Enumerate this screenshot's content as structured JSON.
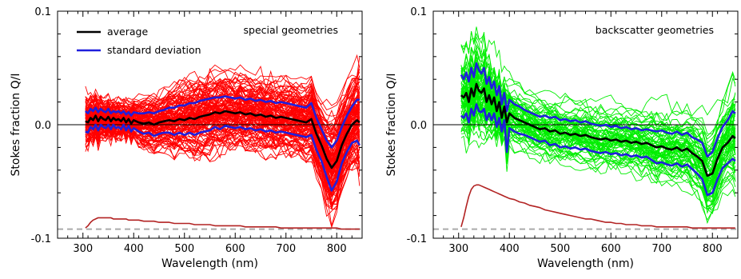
{
  "colors": {
    "average": "#000000",
    "std": "#1f1fdc",
    "ensemble_left": "#ff0000",
    "ensemble_right": "#00ee00",
    "spectrum": "#b22222",
    "dashed": "#aaaaaa"
  },
  "chart_data": [
    {
      "type": "line",
      "panel": "left",
      "annotation": "special geometries",
      "xlabel": "Wavelength (nm)",
      "ylabel": "Stokes fraction Q/I",
      "xlim": [
        250,
        850
      ],
      "ylim": [
        -0.1,
        0.1
      ],
      "x_ticks": [
        300,
        400,
        500,
        600,
        700,
        800
      ],
      "y_ticks": [
        {
          "v": -0.1,
          "label": "-0.1"
        },
        {
          "v": 0.0,
          "label": "0.0"
        },
        {
          "v": 0.1,
          "label": "0.1"
        }
      ],
      "legend": [
        {
          "name": "average",
          "color": "#000000"
        },
        {
          "name": "standard deviation",
          "color": "#1f1fdc"
        }
      ],
      "legend_position": "top-left",
      "zero_line": 0.0,
      "dashed_line": -0.092,
      "ensemble_count": 120,
      "ensemble_color": "#ff0000",
      "x": [
        305,
        310,
        315,
        320,
        325,
        330,
        335,
        340,
        345,
        350,
        355,
        360,
        365,
        370,
        375,
        380,
        385,
        390,
        395,
        400,
        410,
        420,
        430,
        440,
        450,
        460,
        470,
        480,
        490,
        500,
        510,
        520,
        530,
        540,
        550,
        560,
        570,
        580,
        590,
        600,
        610,
        620,
        630,
        640,
        650,
        660,
        670,
        680,
        690,
        700,
        710,
        720,
        730,
        740,
        750,
        760,
        770,
        780,
        790,
        800,
        810,
        820,
        830,
        840,
        845
      ],
      "series": [
        {
          "role": "average",
          "values": [
            0.003,
            0.002,
            0.006,
            0.004,
            0.008,
            0.003,
            0.007,
            0.005,
            0.004,
            0.007,
            0.003,
            0.006,
            0.004,
            0.005,
            0.003,
            0.006,
            0.002,
            0.005,
            0.001,
            0.004,
            0.002,
            0.001,
            0.002,
            0.0,
            0.002,
            0.003,
            0.004,
            0.003,
            0.005,
            0.004,
            0.006,
            0.005,
            0.007,
            0.008,
            0.009,
            0.011,
            0.01,
            0.012,
            0.011,
            0.01,
            0.011,
            0.009,
            0.01,
            0.008,
            0.009,
            0.007,
            0.008,
            0.006,
            0.007,
            0.006,
            0.005,
            0.004,
            0.003,
            0.002,
            0.005,
            -0.008,
            -0.018,
            -0.03,
            -0.038,
            -0.032,
            -0.018,
            -0.008,
            0.0,
            0.004,
            0.002
          ]
        },
        {
          "role": "std_upper",
          "values": [
            0.012,
            0.01,
            0.014,
            0.012,
            0.015,
            0.011,
            0.014,
            0.012,
            0.011,
            0.014,
            0.01,
            0.012,
            0.011,
            0.012,
            0.01,
            0.012,
            0.009,
            0.011,
            0.008,
            0.011,
            0.01,
            0.01,
            0.011,
            0.01,
            0.012,
            0.013,
            0.015,
            0.015,
            0.017,
            0.017,
            0.019,
            0.019,
            0.021,
            0.022,
            0.023,
            0.024,
            0.024,
            0.025,
            0.024,
            0.023,
            0.024,
            0.022,
            0.023,
            0.021,
            0.022,
            0.02,
            0.021,
            0.019,
            0.02,
            0.019,
            0.018,
            0.017,
            0.016,
            0.015,
            0.019,
            0.006,
            -0.004,
            -0.014,
            -0.02,
            -0.014,
            -0.002,
            0.008,
            0.016,
            0.022,
            0.022
          ]
        },
        {
          "role": "std_lower",
          "values": [
            -0.006,
            -0.007,
            -0.002,
            -0.004,
            0.0,
            -0.005,
            0.0,
            -0.002,
            -0.003,
            0.0,
            -0.004,
            0.0,
            -0.003,
            -0.002,
            -0.004,
            0.0,
            -0.005,
            -0.001,
            -0.006,
            -0.003,
            -0.006,
            -0.008,
            -0.007,
            -0.01,
            -0.008,
            -0.007,
            -0.007,
            -0.009,
            -0.007,
            -0.009,
            -0.007,
            -0.009,
            -0.007,
            -0.006,
            -0.005,
            -0.002,
            -0.004,
            -0.001,
            -0.002,
            -0.003,
            -0.002,
            -0.004,
            -0.003,
            -0.005,
            -0.004,
            -0.006,
            -0.005,
            -0.007,
            -0.006,
            -0.007,
            -0.008,
            -0.009,
            -0.01,
            -0.011,
            -0.009,
            -0.022,
            -0.032,
            -0.046,
            -0.058,
            -0.05,
            -0.034,
            -0.024,
            -0.016,
            -0.014,
            -0.018
          ]
        },
        {
          "role": "spectrum",
          "values": [
            -0.091,
            -0.089,
            -0.086,
            -0.084,
            -0.083,
            -0.082,
            -0.082,
            -0.082,
            -0.082,
            -0.082,
            -0.082,
            -0.083,
            -0.083,
            -0.083,
            -0.083,
            -0.083,
            -0.083,
            -0.084,
            -0.084,
            -0.084,
            -0.084,
            -0.085,
            -0.085,
            -0.085,
            -0.086,
            -0.086,
            -0.086,
            -0.087,
            -0.087,
            -0.087,
            -0.087,
            -0.088,
            -0.088,
            -0.088,
            -0.088,
            -0.089,
            -0.089,
            -0.089,
            -0.089,
            -0.089,
            -0.089,
            -0.09,
            -0.09,
            -0.09,
            -0.09,
            -0.09,
            -0.09,
            -0.09,
            -0.091,
            -0.091,
            -0.091,
            -0.091,
            -0.091,
            -0.091,
            -0.091,
            -0.091,
            -0.091,
            -0.091,
            -0.091,
            -0.091,
            -0.092,
            -0.092,
            -0.092,
            -0.092,
            -0.092
          ]
        }
      ]
    },
    {
      "type": "line",
      "panel": "right",
      "annotation": "backscatter geometries",
      "xlabel": "Wavelength (nm)",
      "ylabel": "Stokes fraction Q/I",
      "xlim": [
        250,
        850
      ],
      "ylim": [
        -0.1,
        0.1
      ],
      "x_ticks": [
        300,
        400,
        500,
        600,
        700,
        800
      ],
      "y_ticks": [
        {
          "v": -0.1,
          "label": "-0.1"
        },
        {
          "v": 0.0,
          "label": "0.0"
        },
        {
          "v": 0.1,
          "label": "0.1"
        }
      ],
      "zero_line": 0.0,
      "dashed_line": -0.092,
      "ensemble_count": 70,
      "ensemble_color": "#00ee00",
      "x": [
        305,
        310,
        315,
        320,
        325,
        330,
        335,
        340,
        345,
        350,
        355,
        360,
        365,
        370,
        375,
        380,
        385,
        390,
        395,
        400,
        410,
        420,
        430,
        440,
        450,
        460,
        470,
        480,
        490,
        500,
        510,
        520,
        530,
        540,
        550,
        560,
        570,
        580,
        590,
        600,
        610,
        620,
        630,
        640,
        650,
        660,
        670,
        680,
        690,
        700,
        710,
        720,
        730,
        740,
        750,
        760,
        770,
        780,
        790,
        800,
        810,
        820,
        830,
        840,
        845
      ],
      "series": [
        {
          "role": "average",
          "values": [
            0.026,
            0.024,
            0.028,
            0.02,
            0.032,
            0.025,
            0.036,
            0.03,
            0.028,
            0.032,
            0.02,
            0.026,
            0.018,
            0.024,
            0.012,
            0.02,
            0.006,
            0.016,
            0.002,
            0.01,
            0.006,
            0.004,
            0.002,
            0.0,
            -0.002,
            -0.004,
            -0.003,
            -0.006,
            -0.005,
            -0.008,
            -0.007,
            -0.009,
            -0.008,
            -0.01,
            -0.009,
            -0.011,
            -0.012,
            -0.013,
            -0.012,
            -0.014,
            -0.013,
            -0.015,
            -0.014,
            -0.016,
            -0.015,
            -0.017,
            -0.016,
            -0.018,
            -0.02,
            -0.019,
            -0.021,
            -0.022,
            -0.02,
            -0.023,
            -0.021,
            -0.025,
            -0.028,
            -0.032,
            -0.045,
            -0.043,
            -0.03,
            -0.02,
            -0.016,
            -0.01,
            -0.012
          ]
        },
        {
          "role": "std_upper",
          "values": [
            0.044,
            0.04,
            0.046,
            0.038,
            0.05,
            0.042,
            0.054,
            0.048,
            0.045,
            0.05,
            0.036,
            0.042,
            0.032,
            0.038,
            0.026,
            0.034,
            0.018,
            0.028,
            0.012,
            0.022,
            0.018,
            0.016,
            0.013,
            0.011,
            0.009,
            0.007,
            0.008,
            0.006,
            0.007,
            0.004,
            0.005,
            0.003,
            0.004,
            0.002,
            0.003,
            0.001,
            0.0,
            -0.001,
            0.0,
            -0.002,
            -0.001,
            -0.003,
            -0.002,
            -0.004,
            -0.003,
            -0.005,
            -0.004,
            -0.005,
            -0.006,
            -0.005,
            -0.007,
            -0.008,
            -0.006,
            -0.009,
            -0.007,
            -0.011,
            -0.013,
            -0.016,
            -0.028,
            -0.024,
            -0.012,
            -0.002,
            0.004,
            0.012,
            0.01
          ]
        },
        {
          "role": "std_lower",
          "values": [
            0.008,
            0.006,
            0.01,
            0.002,
            0.014,
            0.008,
            0.018,
            0.012,
            0.011,
            0.014,
            0.004,
            0.01,
            0.004,
            0.01,
            -0.002,
            0.006,
            -0.006,
            0.004,
            -0.024,
            -0.003,
            -0.006,
            -0.008,
            -0.009,
            -0.011,
            -0.013,
            -0.015,
            -0.014,
            -0.018,
            -0.017,
            -0.02,
            -0.019,
            -0.021,
            -0.02,
            -0.022,
            -0.021,
            -0.023,
            -0.024,
            -0.025,
            -0.024,
            -0.026,
            -0.025,
            -0.027,
            -0.026,
            -0.028,
            -0.027,
            -0.029,
            -0.028,
            -0.031,
            -0.034,
            -0.033,
            -0.035,
            -0.036,
            -0.034,
            -0.037,
            -0.035,
            -0.039,
            -0.043,
            -0.048,
            -0.062,
            -0.06,
            -0.048,
            -0.038,
            -0.034,
            -0.03,
            -0.032
          ]
        },
        {
          "role": "spectrum",
          "values": [
            -0.09,
            -0.082,
            -0.072,
            -0.063,
            -0.057,
            -0.054,
            -0.053,
            -0.053,
            -0.054,
            -0.055,
            -0.056,
            -0.057,
            -0.058,
            -0.059,
            -0.06,
            -0.061,
            -0.062,
            -0.063,
            -0.064,
            -0.065,
            -0.066,
            -0.068,
            -0.069,
            -0.071,
            -0.072,
            -0.073,
            -0.075,
            -0.076,
            -0.077,
            -0.078,
            -0.079,
            -0.08,
            -0.081,
            -0.082,
            -0.083,
            -0.083,
            -0.084,
            -0.085,
            -0.086,
            -0.086,
            -0.087,
            -0.087,
            -0.088,
            -0.088,
            -0.088,
            -0.089,
            -0.089,
            -0.089,
            -0.09,
            -0.09,
            -0.09,
            -0.09,
            -0.09,
            -0.09,
            -0.09,
            -0.091,
            -0.091,
            -0.091,
            -0.091,
            -0.091,
            -0.091,
            -0.091,
            -0.091,
            -0.091,
            -0.091
          ]
        }
      ]
    }
  ]
}
